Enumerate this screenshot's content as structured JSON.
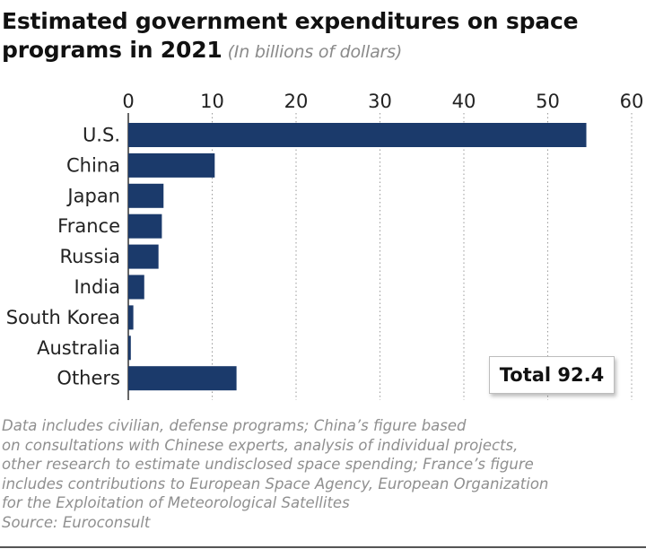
{
  "header": {
    "title_line1": "Estimated government expenditures on space",
    "title_line2": "programs in 2021",
    "subtitle": "(In billions of dollars)"
  },
  "chart_data": {
    "type": "bar",
    "orientation": "horizontal",
    "categories": [
      "U.S.",
      "China",
      "Japan",
      "France",
      "Russia",
      "India",
      "South Korea",
      "Australia",
      "Others"
    ],
    "values": [
      54.6,
      10.3,
      4.2,
      4.0,
      3.6,
      1.9,
      0.6,
      0.3,
      12.9
    ],
    "xlim": [
      0,
      60
    ],
    "xticks": [
      0,
      10,
      20,
      30,
      40,
      50,
      60
    ],
    "axis_position": "top",
    "grid": "vertical dotted",
    "bar_color": "#1b3a6b"
  },
  "total_label": "Total 92.4",
  "notes": {
    "lines": [
      "Data includes civilian, defense programs; China’s figure based",
      "on consultations with Chinese experts, analysis of individual projects,",
      "other research to estimate undisclosed space spending; France’s figure",
      "includes contributions to European Space Agency, European Organization",
      "for the Exploitation of Meteorological Satellites"
    ],
    "source": "Source: Euroconsult"
  }
}
